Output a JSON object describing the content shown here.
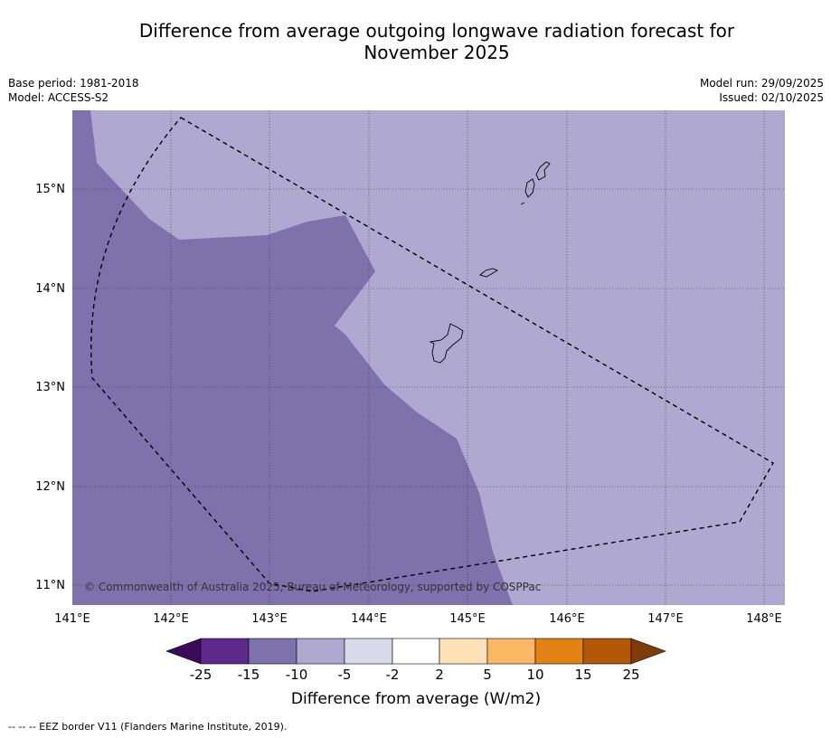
{
  "title": {
    "line1": "Difference from average outgoing longwave radiation forecast for",
    "line2": "November 2025"
  },
  "meta_left": {
    "base_period": "Base period: 1981-2018",
    "model": "Model: ACCESS-S2"
  },
  "meta_right": {
    "model_run": "Model run: 29/09/2025",
    "issued": "Issued: 02/10/2025"
  },
  "map": {
    "lon_labels": [
      "141°E",
      "142°E",
      "143°E",
      "144°E",
      "145°E",
      "146°E",
      "147°E",
      "148°E"
    ],
    "lat_labels": [
      "15°N",
      "14°N",
      "13°N",
      "12°N",
      "11°N"
    ],
    "credit": "© Commonwealth of Australia 2025, Bureau of Meteorology, supported by COSPPac",
    "colors": {
      "band_minus10_minus5": "#afa8d0",
      "band_minus15_minus10": "#7f72ac"
    }
  },
  "colorbar": {
    "ticks": [
      "-25",
      "-15",
      "-10",
      "-5",
      "-2",
      "2",
      "5",
      "10",
      "15",
      "25"
    ],
    "colors": [
      "#3b0b5a",
      "#5b2a8c",
      "#7f72ac",
      "#afa8d0",
      "#dad9ec",
      "#ffffff",
      "#fde2b8",
      "#fdb863",
      "#e08214",
      "#b35806",
      "#7f3b08"
    ],
    "label": "Difference from average (W/m2)"
  },
  "footer": "--  --  -- EEZ border V11 (Flanders Marine Institute, 2019)."
}
